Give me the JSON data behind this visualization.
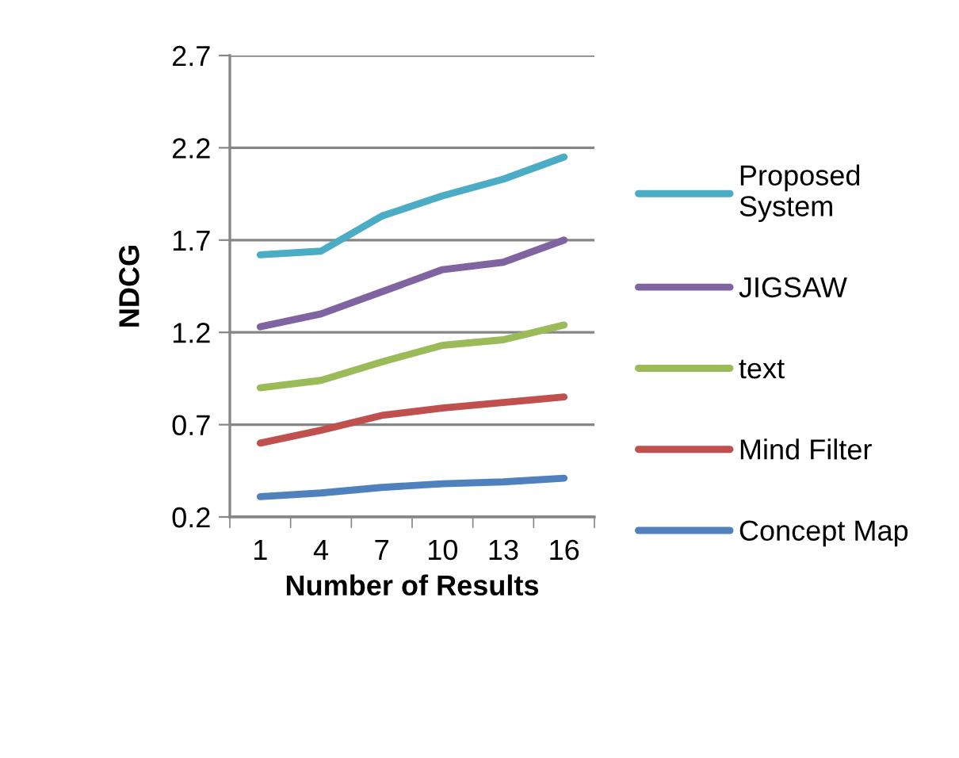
{
  "chart_data": {
    "type": "line",
    "xlabel": "Number of Results",
    "ylabel": "NDCG",
    "categories": [
      "1",
      "4",
      "7",
      "10",
      "13",
      "16"
    ],
    "series": [
      {
        "name": "Proposed System",
        "color": "#4bacc6",
        "values": [
          1.62,
          1.64,
          1.83,
          1.94,
          2.03,
          2.15
        ]
      },
      {
        "name": "JIGSAW",
        "color": "#8064a2",
        "values": [
          1.23,
          1.3,
          1.42,
          1.54,
          1.58,
          1.7
        ]
      },
      {
        "name": "text",
        "color": "#9bbb59",
        "values": [
          0.9,
          0.94,
          1.04,
          1.13,
          1.16,
          1.24
        ]
      },
      {
        "name": "Mind Filter",
        "color": "#c0504d",
        "values": [
          0.6,
          0.67,
          0.75,
          0.79,
          0.82,
          0.85
        ]
      },
      {
        "name": "Concept Map",
        "color": "#4f81bd",
        "values": [
          0.31,
          0.33,
          0.36,
          0.38,
          0.39,
          0.41
        ]
      }
    ],
    "ylim": [
      0.2,
      2.7
    ],
    "yticks": [
      0.2,
      0.7,
      1.2,
      1.7,
      2.2,
      2.7
    ],
    "grid": "y",
    "legend": "right",
    "marker": "none",
    "line_style": "solid"
  }
}
